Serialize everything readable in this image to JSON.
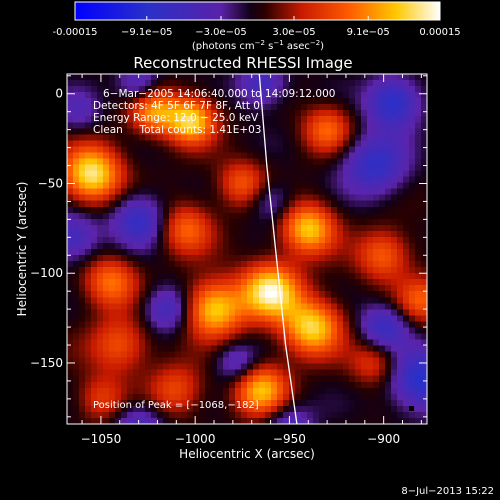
{
  "colorbar": {
    "ticks": [
      "-0.00015",
      "−9.1e−05",
      "−3.0e−05",
      "3.0e−05",
      "9.1e−05",
      "0.00015"
    ],
    "tick_values": [
      -0.00015,
      -9.1e-05,
      -3e-05,
      3e-05,
      9.1e-05,
      0.00015
    ],
    "range": [
      -0.00015,
      0.00015
    ],
    "unit_label": "(photons cm",
    "unit_exp1": "−2",
    "unit_mid": " s",
    "unit_exp2": "−1",
    "unit_end": " asec",
    "unit_exp3": "−2",
    "unit_close": ")"
  },
  "chart_data": {
    "type": "heatmap",
    "title": "Reconstructed RHESSI Image",
    "xlabel": "Heliocentric X (arcsec)",
    "ylabel": "Heliocentric Y (arcsec)",
    "xlim": [
      -1068,
      -877
    ],
    "ylim": [
      -184,
      11
    ],
    "xticks": [
      -1050,
      -1000,
      -950,
      -900
    ],
    "yticks": [
      0,
      -50,
      -100,
      -150
    ],
    "xtick_labels": [
      "−1050",
      "−1000",
      "−950",
      "−900"
    ],
    "ytick_labels": [
      "0",
      "−50",
      "−100",
      "−150"
    ],
    "limb_curve": {
      "x": [
        -966,
        -962,
        -957,
        -952,
        -946
      ],
      "y": [
        11,
        -40,
        -90,
        -140,
        -184
      ]
    },
    "peak": {
      "x": -1068,
      "y": -182
    },
    "blobs": [
      [
        -1055,
        -45,
        1.0,
        11
      ],
      [
        -1045,
        -105,
        0.6,
        10
      ],
      [
        -1022,
        -10,
        0.7,
        9
      ],
      [
        -1002,
        -15,
        0.9,
        9
      ],
      [
        -1005,
        -75,
        0.55,
        10
      ],
      [
        -990,
        -120,
        0.9,
        11
      ],
      [
        -960,
        -110,
        1.0,
        11
      ],
      [
        -940,
        -75,
        0.85,
        10
      ],
      [
        -938,
        -130,
        0.9,
        11
      ],
      [
        -965,
        -165,
        0.8,
        10
      ],
      [
        -1040,
        -140,
        0.5,
        11
      ],
      [
        -1050,
        -170,
        0.4,
        9
      ],
      [
        -1010,
        -165,
        0.45,
        10
      ],
      [
        -930,
        -20,
        0.55,
        9
      ],
      [
        -900,
        -90,
        0.55,
        10
      ],
      [
        -905,
        -150,
        0.4,
        9
      ],
      [
        -880,
        -115,
        0.5,
        9
      ],
      [
        -975,
        -50,
        0.5,
        9
      ],
      [
        -1065,
        -80,
        -0.5,
        10
      ],
      [
        -1030,
        -70,
        -0.6,
        10
      ],
      [
        -1030,
        5,
        -0.45,
        8
      ],
      [
        -965,
        5,
        -0.5,
        9
      ],
      [
        -960,
        -60,
        -0.35,
        8
      ],
      [
        -905,
        -40,
        -0.6,
        12
      ],
      [
        -895,
        -5,
        -0.7,
        10
      ],
      [
        -880,
        -160,
        -0.7,
        12
      ],
      [
        -900,
        -130,
        -0.55,
        9
      ],
      [
        -1015,
        -120,
        -0.5,
        9
      ],
      [
        -1030,
        -185,
        -0.45,
        9
      ],
      [
        -950,
        -185,
        -0.4,
        9
      ],
      [
        -978,
        -150,
        -0.4,
        8
      ],
      [
        -1062,
        -10,
        -0.3,
        8
      ]
    ]
  },
  "annotations": {
    "time_range": "6−Mar−2005 14:06:40.000 to 14:09:12.000",
    "detectors": "Detectors: 4F 5F 6F 7F 8F, Att 0",
    "energy": "Energy Range: 12.0 − 25.0 keV",
    "clean": "Clean     Total counts: 1.41E+03",
    "peak_position": "Position of Peak = [−1068,−182]"
  },
  "timestamp": "8−Jul−2013 15:22"
}
